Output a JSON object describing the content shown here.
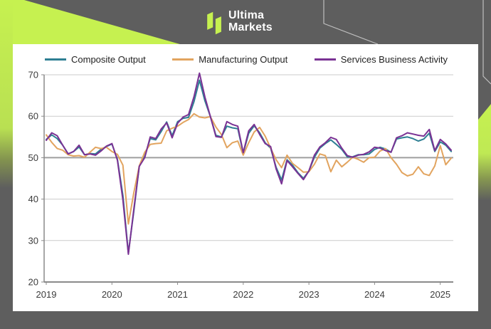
{
  "logo": {
    "line1": "Ultima",
    "line2": "Markets"
  },
  "theme": {
    "background_gray": "#5e5e5e",
    "accent_green": "#c6f150",
    "card_white": "#ffffff",
    "outline_light": "#d0d0d0"
  },
  "chart_data": {
    "type": "line",
    "title": "",
    "x_unit": "month",
    "x_range": "2019-01 to 2025-03",
    "x_tick_labels": [
      "2019",
      "2020",
      "2021",
      "2022",
      "2023",
      "2024",
      "2025"
    ],
    "y_ticks": [
      20,
      30,
      40,
      50,
      60,
      70
    ],
    "ylim": [
      20,
      70
    ],
    "highlight_gridline": 50,
    "grid": true,
    "legend_position": "top",
    "series": [
      {
        "name": "Composite Output",
        "color": "#2e7f93",
        "values": [
          54.4,
          55.5,
          54.6,
          53.0,
          50.9,
          51.5,
          52.6,
          50.7,
          51.0,
          50.9,
          52.0,
          52.7,
          53.3,
          49.6,
          40.9,
          27.0,
          37.0,
          47.9,
          50.3,
          54.6,
          54.3,
          56.3,
          58.6,
          55.3,
          58.7,
          59.5,
          59.7,
          63.5,
          68.7,
          63.7,
          59.9,
          55.4,
          55.0,
          57.6,
          57.2,
          57.0,
          51.1,
          55.9,
          57.7,
          56.0,
          53.6,
          52.3,
          47.7,
          44.6,
          49.5,
          48.2,
          46.4,
          45.0,
          46.8,
          50.1,
          52.3,
          53.4,
          54.3,
          53.2,
          52.0,
          50.2,
          50.2,
          50.7,
          50.7,
          50.9,
          52.0,
          52.5,
          52.1,
          51.3,
          54.5,
          54.8,
          55.0,
          54.6,
          54.0,
          54.5,
          55.9,
          51.5,
          53.8,
          53.0,
          51.5
        ]
      },
      {
        "name": "Manufacturing Output",
        "color": "#e2a45f",
        "values": [
          55.5,
          53.7,
          52.2,
          51.8,
          50.7,
          50.4,
          50.5,
          50.1,
          51.3,
          52.5,
          52.2,
          52.5,
          51.5,
          50.8,
          48.2,
          34.0,
          41.5,
          48.0,
          51.3,
          53.2,
          53.4,
          53.5,
          56.5,
          57.1,
          57.6,
          58.5,
          59.2,
          60.6,
          59.8,
          59.6,
          59.9,
          57.4,
          55.6,
          52.4,
          53.6,
          54.0,
          50.6,
          53.6,
          56.2,
          57.3,
          55.2,
          52.3,
          49.5,
          47.6,
          50.6,
          48.6,
          47.6,
          46.5,
          46.6,
          48.4,
          50.9,
          50.5,
          46.6,
          49.4,
          47.8,
          48.9,
          50.1,
          49.6,
          48.9,
          50.0,
          50.1,
          51.6,
          52.2,
          50.0,
          48.4,
          46.4,
          45.6,
          46.0,
          47.8,
          46.1,
          45.7,
          48.0,
          52.9,
          48.3,
          49.9
        ]
      },
      {
        "name": "Services Business Activity",
        "color": "#7a3294",
        "values": [
          54.2,
          56.0,
          55.3,
          53.0,
          50.9,
          51.5,
          53.0,
          50.7,
          50.9,
          50.6,
          51.6,
          52.8,
          53.4,
          49.4,
          39.8,
          26.7,
          37.5,
          47.9,
          50.0,
          55.0,
          54.6,
          56.9,
          58.4,
          54.8,
          58.3,
          59.8,
          60.4,
          64.7,
          70.4,
          64.6,
          59.9,
          55.1,
          54.9,
          58.7,
          58.0,
          57.6,
          51.2,
          56.5,
          58.0,
          55.6,
          53.4,
          52.7,
          47.3,
          43.7,
          49.3,
          47.8,
          46.2,
          44.7,
          46.8,
          50.6,
          52.6,
          53.6,
          54.9,
          54.4,
          52.3,
          50.5,
          50.1,
          50.6,
          50.8,
          51.4,
          52.5,
          52.3,
          51.7,
          51.3,
          54.8,
          55.3,
          56.0,
          55.7,
          55.4,
          55.2,
          56.8,
          51.7,
          54.4,
          53.3,
          51.8
        ]
      }
    ]
  }
}
